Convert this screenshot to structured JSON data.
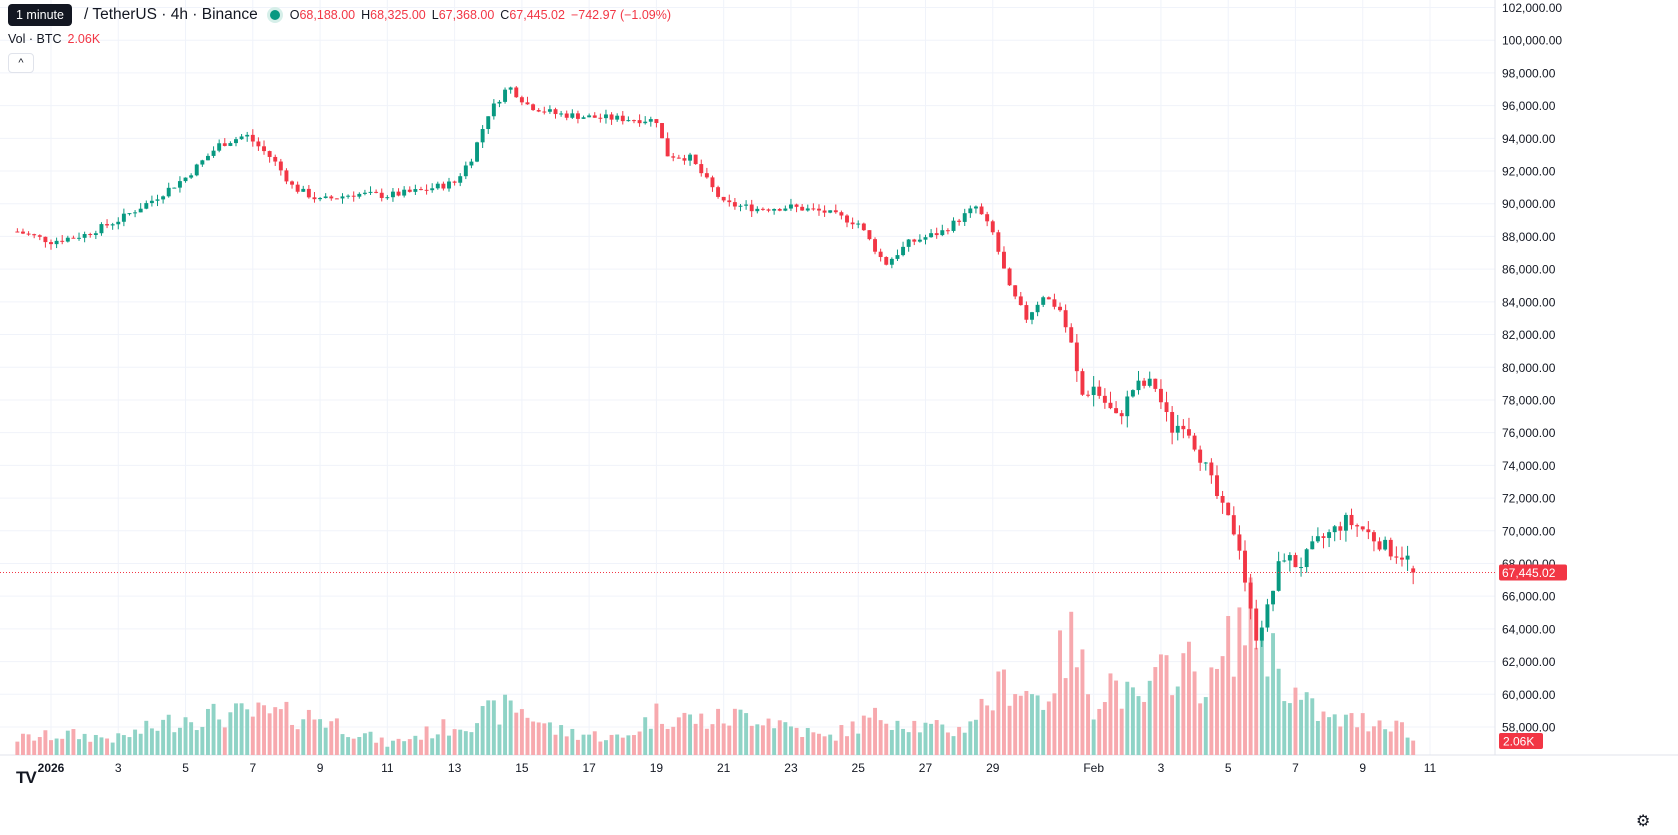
{
  "legend": {
    "tooltip": "1 minute",
    "symbol": "/ TetherUS · 4h · Binance",
    "open_label": "O",
    "open": "68,188.00",
    "high_label": "H",
    "high": "68,325.00",
    "low_label": "L",
    "low": "67,368.00",
    "close_label": "C",
    "close": "67,445.02",
    "change": "−742.97 (−1.09%)",
    "vol_label": "Vol · BTC",
    "vol_value": "2.06K",
    "collapse": "^"
  },
  "colors": {
    "up": "#089981",
    "down": "#f23645",
    "upVol": "#8fd3c6",
    "downVol": "#f7a9ae",
    "grid": "#f0f3fa"
  },
  "price_label": "67,445.02",
  "vol_label_right": "2.06K",
  "logo": "TV",
  "settings_icon": "gear-icon",
  "chart_data": {
    "type": "candlestick",
    "y_ticks": [
      "102,000.00",
      "100,000.00",
      "98,000.00",
      "96,000.00",
      "94,000.00",
      "92,000.00",
      "90,000.00",
      "88,000.00",
      "86,000.00",
      "84,000.00",
      "82,000.00",
      "80,000.00",
      "78,000.00",
      "76,000.00",
      "74,000.00",
      "72,000.00",
      "70,000.00",
      "68,000.00",
      "66,000.00",
      "64,000.00",
      "62,000.00",
      "60,000.00",
      "58,000.00"
    ],
    "y_range": [
      57000,
      102000
    ],
    "x_ticks": [
      "2026",
      "3",
      "5",
      "7",
      "9",
      "11",
      "13",
      "15",
      "17",
      "19",
      "21",
      "23",
      "25",
      "27",
      "29",
      "Feb",
      "3",
      "5",
      "7",
      "9",
      "11"
    ],
    "x_tick_days": [
      1,
      3,
      5,
      7,
      9,
      11,
      13,
      15,
      17,
      19,
      21,
      23,
      25,
      27,
      29,
      32,
      34,
      36,
      38,
      40,
      42
    ],
    "x_range_days": [
      0,
      44
    ],
    "last_price": 67445.02,
    "close_anchors": [
      [
        0,
        88300
      ],
      [
        1,
        87700
      ],
      [
        2,
        88100
      ],
      [
        3,
        89000
      ],
      [
        4,
        90200
      ],
      [
        5,
        91600
      ],
      [
        6,
        93600
      ],
      [
        6.8,
        94200
      ],
      [
        7.6,
        92700
      ],
      [
        8.2,
        91000
      ],
      [
        9,
        90200
      ],
      [
        10,
        90600
      ],
      [
        11,
        90500
      ],
      [
        12,
        90800
      ],
      [
        13,
        91300
      ],
      [
        13.5,
        92800
      ],
      [
        14,
        95500
      ],
      [
        14.6,
        97200
      ],
      [
        15.2,
        96000
      ],
      [
        16,
        95500
      ],
      [
        17,
        95300
      ],
      [
        18,
        95200
      ],
      [
        19,
        95100
      ],
      [
        19.3,
        93000
      ],
      [
        20,
        92800
      ],
      [
        21,
        90000
      ],
      [
        22,
        89700
      ],
      [
        23,
        89800
      ],
      [
        24,
        89500
      ],
      [
        25,
        88800
      ],
      [
        25.8,
        86300
      ],
      [
        26.5,
        87600
      ],
      [
        27.5,
        88300
      ],
      [
        28.5,
        89800
      ],
      [
        29,
        88200
      ],
      [
        29.5,
        84800
      ],
      [
        30,
        83000
      ],
      [
        30.5,
        84400
      ],
      [
        31,
        83500
      ],
      [
        31.4,
        81000
      ],
      [
        31.6,
        78200
      ],
      [
        32,
        78800
      ],
      [
        32.7,
        76800
      ],
      [
        33.2,
        78800
      ],
      [
        33.8,
        79000
      ],
      [
        34.3,
        76200
      ],
      [
        34.7,
        76700
      ],
      [
        35.3,
        74000
      ],
      [
        35.8,
        71400
      ],
      [
        36.3,
        69500
      ],
      [
        36.6,
        65700
      ],
      [
        36.8,
        63500
      ],
      [
        37.2,
        65300
      ],
      [
        37.6,
        68600
      ],
      [
        38.1,
        67800
      ],
      [
        38.6,
        69200
      ],
      [
        39,
        69800
      ],
      [
        39.5,
        70600
      ],
      [
        40,
        70100
      ],
      [
        40.8,
        68800
      ],
      [
        41.3,
        68400
      ],
      [
        41.6,
        67445
      ]
    ],
    "volume_peaks": [
      [
        0,
        0.12
      ],
      [
        1.5,
        0.15
      ],
      [
        3,
        0.12
      ],
      [
        5,
        0.28
      ],
      [
        7,
        0.3
      ],
      [
        9,
        0.28
      ],
      [
        11,
        0.08
      ],
      [
        13,
        0.22
      ],
      [
        14.8,
        0.36
      ],
      [
        16,
        0.18
      ],
      [
        18,
        0.12
      ],
      [
        19,
        0.3
      ],
      [
        20.5,
        0.25
      ],
      [
        22,
        0.3
      ],
      [
        24,
        0.12
      ],
      [
        25.8,
        0.3
      ],
      [
        27,
        0.2
      ],
      [
        28,
        0.18
      ],
      [
        29.5,
        0.55
      ],
      [
        30.5,
        0.4
      ],
      [
        31.3,
        0.85
      ],
      [
        32,
        0.4
      ],
      [
        32.5,
        0.55
      ],
      [
        33.3,
        0.35
      ],
      [
        34.5,
        0.72
      ],
      [
        35.5,
        0.5
      ],
      [
        36.3,
        0.95
      ],
      [
        36.8,
        1.0
      ],
      [
        37.2,
        0.8
      ],
      [
        37.6,
        0.6
      ],
      [
        38.1,
        0.4
      ],
      [
        39,
        0.25
      ],
      [
        40,
        0.25
      ],
      [
        41,
        0.25
      ],
      [
        41.6,
        0.08
      ]
    ]
  }
}
